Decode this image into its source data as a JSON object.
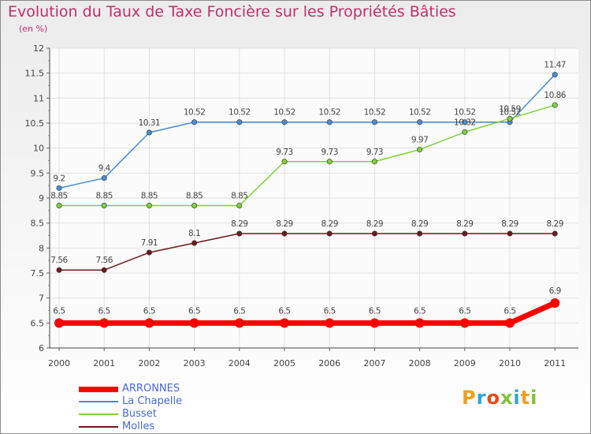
{
  "chart_data": {
    "type": "line",
    "title": "Evolution du Taux de Taxe Foncière sur les Propriétés Bâties",
    "ylabel": "(en %)",
    "xlabel": "",
    "ylim": [
      6,
      12
    ],
    "yticks": [
      "6",
      "6.5",
      "7",
      "7.5",
      "8",
      "8.5",
      "9",
      "9.5",
      "10",
      "10.5",
      "11",
      "11.5",
      "12"
    ],
    "yticks_values": [
      6,
      6.5,
      7,
      7.5,
      8,
      8.5,
      9,
      9.5,
      10,
      10.5,
      11,
      11.5,
      12
    ],
    "categories": [
      "2000",
      "2001",
      "2002",
      "2003",
      "2004",
      "2005",
      "2006",
      "2007",
      "2008",
      "2009",
      "2010",
      "2011"
    ],
    "grid": true,
    "legend_position": "bottom-left",
    "series": [
      {
        "name": "ARRONNES",
        "color": "#ff0000",
        "thick": true,
        "values": [
          6.5,
          6.5,
          6.5,
          6.5,
          6.5,
          6.5,
          6.5,
          6.5,
          6.5,
          6.5,
          6.5,
          6.9
        ],
        "labels": [
          "6.5",
          "6.5",
          "6.5",
          "6.5",
          "6.5",
          "6.5",
          "6.5",
          "6.5",
          "6.5",
          "6.5",
          "6.5",
          "6.9"
        ]
      },
      {
        "name": "La Chapelle",
        "color": "#4a8ed0",
        "thick": false,
        "values": [
          9.2,
          9.4,
          10.31,
          10.52,
          10.52,
          10.52,
          10.52,
          10.52,
          10.52,
          10.52,
          10.52,
          11.47
        ],
        "labels": [
          "9.2",
          "9.4",
          "10.31",
          "10.52",
          "10.52",
          "10.52",
          "10.52",
          "10.52",
          "10.52",
          "10.52",
          "10.52",
          "11.47"
        ]
      },
      {
        "name": "Busset",
        "color": "#7fd23a",
        "thick": false,
        "values": [
          8.85,
          8.85,
          8.85,
          8.85,
          8.85,
          9.73,
          9.73,
          9.73,
          9.97,
          10.32,
          10.59,
          10.86
        ],
        "labels": [
          "8.85",
          "8.85",
          "8.85",
          "8.85",
          "8.85",
          "9.73",
          "9.73",
          "9.73",
          "9.97",
          "10.32",
          "10.59",
          "10.86"
        ]
      },
      {
        "name": "Molles",
        "color": "#6b1a1e",
        "thick": false,
        "values": [
          7.56,
          7.56,
          7.91,
          8.1,
          8.29,
          8.29,
          8.29,
          8.29,
          8.29,
          8.29,
          8.29,
          8.29
        ],
        "labels": [
          "7.56",
          "7.56",
          "7.91",
          "8.1",
          "8.29",
          "8.29",
          "8.29",
          "8.29",
          "8.29",
          "8.29",
          "8.29",
          "8.29"
        ]
      }
    ]
  },
  "logo": {
    "letters": [
      "P",
      "r",
      "o",
      "x",
      "i",
      "t",
      "i"
    ],
    "colors": [
      "#f0a020",
      "#2aa8d8",
      "#e84a1a",
      "#7fc23a",
      "#2aa8d8",
      "#f0a020",
      "#7fc23a"
    ]
  }
}
